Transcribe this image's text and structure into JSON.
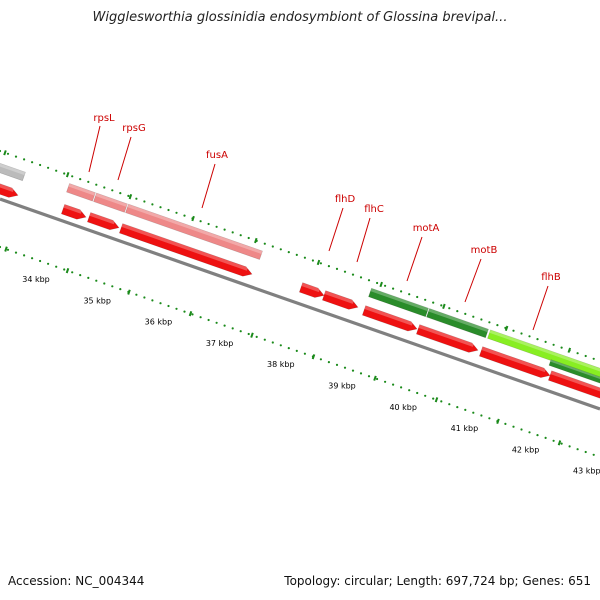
{
  "title": "Wigglesworthia glossinidia endosymbiont of Glossina brevipal...",
  "footer": {
    "accession": "Accession: NC_004344",
    "topology": "Topology: circular; Length: 697,724 bp; Genes: 651"
  },
  "colors": {
    "backbone": "#808080",
    "tick": "#1a8a1a",
    "gene_red": "#ee1111",
    "gene_pink": "#ee8888",
    "gene_grey": "#bbbbbb",
    "gene_green": "#2a8c2a",
    "gene_lightgreen": "#88ee22",
    "label": "#cc0000"
  },
  "kbp_labels": [
    "34 kbp",
    "35 kbp",
    "36 kbp",
    "37 kbp",
    "38 kbp",
    "39 kbp",
    "40 kbp",
    "41 kbp",
    "42 kbp",
    "43 kbp"
  ],
  "gene_labels": [
    "rpsL",
    "rpsG",
    "fusA",
    "flhD",
    "flhC",
    "motA",
    "motB",
    "flhB"
  ]
}
